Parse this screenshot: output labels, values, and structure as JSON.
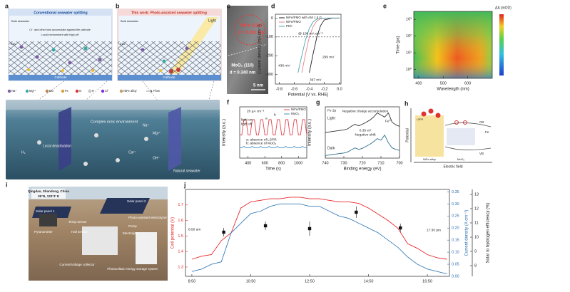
{
  "panels": {
    "a": {
      "label": "a",
      "title": "Conventional seawater splitting",
      "texts": [
        "Bulk seawater",
        "Cl⁻ and other ions accumulate against the cathode",
        "Local environment with high pH",
        "EDL",
        "Cathode"
      ]
    },
    "b": {
      "label": "b",
      "title": "This work: Photo-assisted seawater splitting",
      "texts": [
        "Light",
        "Bulk seawater",
        "Cathode",
        "EDL"
      ]
    },
    "legend": [
      "Na⁺",
      "Mg²⁺",
      "Mo",
      "Fe",
      "O",
      "H",
      "Cl⁻",
      "NiFe alloy",
      "Flow"
    ],
    "tank": [
      "Complex ionic environment",
      "Local deactivation",
      "Natural seawater",
      "H₂",
      "Na⁺",
      "Mg²⁺",
      "Ca²⁺",
      "OH⁻"
    ],
    "c": {
      "label": "c",
      "texts": [
        "NiFe (111)",
        "d = 0.202 nm",
        "MoO₂ (110)",
        "d = 0.340 nm",
        "5 nm"
      ]
    },
    "h": {
      "label": "h",
      "texts": [
        "Potential",
        "Electric field",
        "LSPR",
        "CB",
        "VB",
        "Fe",
        "NiFe alloy",
        "MoO₂"
      ]
    },
    "i": {
      "label": "i",
      "texts": [
        "Qingdao, Shandong, China",
        "36°N, 120°3' E",
        "Solar panel 2",
        "Solar panel 1",
        "Photo-assisted electrolyzer",
        "Pump",
        "Temp sensor",
        "Pyranometer",
        "Hall sensor",
        "Electrolyte",
        "Current/Voltage collector",
        "Photovoltaic energy storage system"
      ]
    }
  },
  "chart_data": [
    {
      "type": "line",
      "label": "d",
      "xlabel": "Potential (V vs. RHE)",
      "ylabel": "Current density (mA cm⁻²)",
      "x": [
        -0.8,
        -0.7,
        -0.6,
        -0.55,
        -0.5,
        -0.45,
        -0.4,
        -0.35,
        -0.3,
        -0.25,
        -0.2,
        -0.1,
        0.0
      ],
      "xlim": [
        -0.85,
        0.02
      ],
      "xticks": [
        -0.8,
        -0.6,
        -0.4,
        -0.2,
        {
          "value": 0,
          "label": "0.0"
        }
      ],
      "ylim": [
        -350,
        20
      ],
      "yticks": [
        -300,
        -200,
        -100,
        0
      ],
      "reference_line": -100,
      "series": [
        {
          "name": "NiFe/FMO with AM 1.5 G",
          "color": "#222222",
          "values": [
            null,
            null,
            null,
            null,
            null,
            null,
            -290,
            -190,
            -100,
            -40,
            -10,
            -1,
            0
          ]
        },
        {
          "name": "NiFe/FMO",
          "color": "#e9828a",
          "values": [
            null,
            null,
            null,
            null,
            -290,
            -190,
            -100,
            -45,
            -15,
            -4,
            -1,
            0,
            0
          ]
        },
        {
          "name": "Pt/C",
          "color": "#4aa6b3",
          "values": [
            null,
            null,
            null,
            -290,
            -200,
            -115,
            -55,
            -20,
            -6,
            -2,
            0,
            0,
            0
          ]
        }
      ],
      "annotations": [
        "@ 100 mA cm⁻²",
        "436 mV",
        "397 mV",
        "299 mV"
      ]
    },
    {
      "type": "heatmap",
      "label": "e",
      "xlabel": "Wavelength (nm)",
      "ylabel": "Time (ps)",
      "xlim": [
        380,
        700
      ],
      "xticks": [
        400,
        500,
        600
      ],
      "ylog": true,
      "ylim": [
        0.3,
        3000
      ],
      "yticks": [
        {
          "value": 1,
          "label": "10⁰"
        },
        {
          "value": 10,
          "label": "10¹"
        },
        {
          "value": 100,
          "label": "10²"
        },
        {
          "value": 1000,
          "label": "10³"
        }
      ],
      "colorbar_label": "ΔA (mOD)"
    },
    {
      "type": "line",
      "label": "f",
      "xlabel": "Time (s)",
      "ylabel": "Intensity (a.u.)",
      "x": [
        300,
        325,
        350,
        375,
        400,
        425,
        450,
        475,
        500,
        525,
        550,
        575,
        600,
        625,
        650,
        675,
        700,
        725,
        750,
        775,
        800,
        825,
        850,
        875,
        900,
        925,
        950,
        975,
        1000,
        1025,
        1050,
        1075,
        1100
      ],
      "xlim": [
        300,
        1100
      ],
      "xticks": [
        400,
        600,
        800,
        1000
      ],
      "ylim": [
        0,
        1
      ],
      "series": [
        {
          "name": "NiFe/FMO",
          "color": "#e0454f",
          "values": [
            0.45,
            0.45,
            0.75,
            0.75,
            0.45,
            0.45,
            0.75,
            0.75,
            0.45,
            0.45,
            0.75,
            0.75,
            0.45,
            0.45,
            0.75,
            0.75,
            0.45,
            0.45,
            0.75,
            0.75,
            0.45,
            0.45,
            0.75,
            0.75,
            0.45,
            0.45,
            0.75,
            0.75,
            0.45,
            0.45,
            0.75,
            0.75,
            0.45
          ]
        },
        {
          "name": "MoO₂",
          "color": "#4c8fc9",
          "values": [
            0.2,
            0.2,
            0.23,
            0.2,
            0.2,
            0.2,
            0.23,
            0.2,
            0.2,
            0.2,
            0.23,
            0.2,
            0.2,
            0.2,
            0.23,
            0.2,
            0.2,
            0.2,
            0.23,
            0.2,
            0.2,
            0.2,
            0.23,
            0.2,
            0.2,
            0.2,
            0.23,
            0.2,
            0.2,
            0.2,
            0.23,
            0.2,
            0.2
          ]
        }
      ],
      "annotations": [
        "20 µA cm⁻²",
        "light on",
        "light off",
        "a: absence of LSPR",
        "b: absence of MoO₂",
        "a",
        "b"
      ]
    },
    {
      "type": "line",
      "label": "g",
      "xlabel": "Binding energy (eV)",
      "ylabel": "Intensity (a.u.)",
      "x": [
        740,
        738,
        736,
        734,
        732,
        730,
        728,
        726,
        724,
        722,
        720,
        718,
        716,
        714,
        712,
        710,
        708,
        706,
        704,
        702,
        700
      ],
      "xlim": [
        740,
        700
      ],
      "xticks": [
        740,
        730,
        720,
        710,
        700
      ],
      "ylim": [
        0,
        1
      ],
      "series": [
        {
          "name": "Light",
          "color": "#333333",
          "values": [
            0.5,
            0.51,
            0.52,
            0.53,
            0.54,
            0.55,
            0.57,
            0.62,
            0.66,
            0.63,
            0.66,
            0.7,
            0.74,
            0.8,
            0.88,
            0.84,
            0.8,
            0.88,
            0.7,
            0.65,
            0.62
          ]
        },
        {
          "name": "Dark",
          "color": "#2f6f8f",
          "values": [
            0.05,
            0.06,
            0.07,
            0.08,
            0.09,
            0.1,
            0.12,
            0.16,
            0.2,
            0.17,
            0.19,
            0.23,
            0.27,
            0.32,
            0.38,
            0.35,
            0.45,
            0.3,
            0.2,
            0.17,
            0.15
          ]
        }
      ],
      "annotations": [
        "Fe 2p",
        "Negative charge accumulation",
        "Fe⁰",
        "0.35 eV",
        "Negative shift"
      ]
    },
    {
      "type": "line",
      "label": "j",
      "ylabel": "Cell potential (V)",
      "y2label": "Current density (A cm⁻²)",
      "y3label": "Solar to hydrogen efficiency (%)",
      "x": [
        530,
        550,
        570,
        590,
        610,
        630,
        650,
        670,
        690,
        710,
        730,
        750,
        770,
        790,
        810,
        830,
        850,
        870,
        890,
        910,
        930,
        950,
        970,
        990,
        1010,
        1030,
        1050
      ],
      "xlim": [
        517,
        1055
      ],
      "xticks": [
        {
          "value": 530,
          "label": "8:50"
        },
        {
          "value": 650,
          "label": "10:50"
        },
        {
          "value": 770,
          "label": "12:50"
        },
        {
          "value": 890,
          "label": "14:50"
        },
        {
          "value": 1010,
          "label": "16:50"
        }
      ],
      "ylim": [
        1.24,
        1.8
      ],
      "yticks": [
        1.3,
        1.4,
        1.5,
        1.6,
        1.7
      ],
      "y2lim": [
        0,
        0.36
      ],
      "y2ticks": [
        {
          "value": 0,
          "label": "0.00"
        },
        0.05,
        {
          "value": 0.1,
          "label": "0.10"
        },
        0.15,
        {
          "value": 0.2,
          "label": "0.20"
        },
        0.25,
        {
          "value": 0.3,
          "label": "0.30"
        },
        0.35
      ],
      "y3lim": [
        7.25,
        13.35
      ],
      "y3ticks": [
        8,
        9,
        10,
        11,
        12,
        13
      ],
      "series": [
        {
          "color": "#e8262b",
          "values": [
            1.35,
            1.37,
            1.38,
            1.47,
            1.52,
            1.68,
            1.72,
            1.73,
            1.74,
            1.74,
            1.75,
            1.75,
            1.74,
            1.74,
            1.73,
            1.72,
            1.72,
            1.71,
            1.68,
            1.64,
            1.6,
            1.55,
            1.45,
            1.42,
            1.38,
            1.36,
            1.35
          ]
        },
        {
          "color": "#3a7fb8",
          "axis": "y2",
          "values": [
            0.02,
            0.03,
            0.05,
            0.06,
            0.18,
            0.22,
            0.26,
            0.27,
            0.29,
            0.3,
            0.3,
            0.3,
            0.29,
            0.29,
            0.27,
            0.25,
            0.24,
            0.22,
            0.2,
            0.18,
            0.15,
            0.12,
            0.08,
            0.05,
            0.03,
            0.02,
            0.01
          ]
        },
        {
          "type": "scatter",
          "color": "#111111",
          "axis": "y3",
          "x": [
            595,
            680,
            770,
            865,
            955
          ],
          "values": [
            10.35,
            10.8,
            10.6,
            11.75,
            10.65
          ],
          "errors": [
            0.3,
            0.3,
            0.5,
            0.4,
            0.3
          ]
        }
      ],
      "annotations": [
        "8:50 am",
        "17:30 pm"
      ]
    }
  ]
}
